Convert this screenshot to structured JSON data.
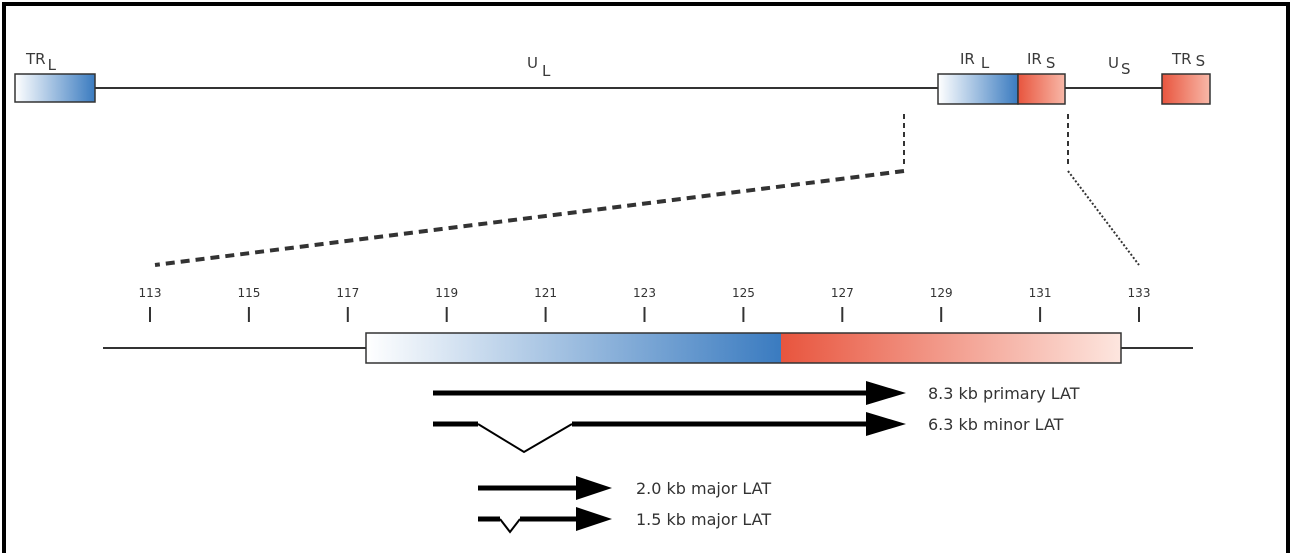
{
  "genome": {
    "segments": [
      {
        "id": "TRL",
        "main": "TR",
        "sub": "L",
        "color": "blue"
      },
      {
        "id": "UL",
        "main": "U",
        "sub": "L"
      },
      {
        "id": "IRL",
        "main": "IR",
        "sub": "L",
        "color": "blue"
      },
      {
        "id": "IRS",
        "main": "IR",
        "sub": "S",
        "color": "red"
      },
      {
        "id": "US",
        "main": "U",
        "sub": "S"
      },
      {
        "id": "TRS",
        "main": "TR",
        "sub": "S",
        "color": "red"
      }
    ]
  },
  "scale": {
    "ticks": [
      "113",
      "115",
      "117",
      "119",
      "121",
      "123",
      "125",
      "127",
      "129",
      "131",
      "133"
    ]
  },
  "transcripts": [
    {
      "label": "8.3 kb primary LAT",
      "spliced": false
    },
    {
      "label": "6.3 kb minor LAT",
      "spliced": true
    },
    {
      "label": "2.0 kb major LAT",
      "spliced": false
    },
    {
      "label": "1.5 kb major LAT",
      "spliced": true
    }
  ],
  "colors": {
    "blue": "#3a7bc0",
    "red": "#e8553e",
    "line": "#333333"
  }
}
